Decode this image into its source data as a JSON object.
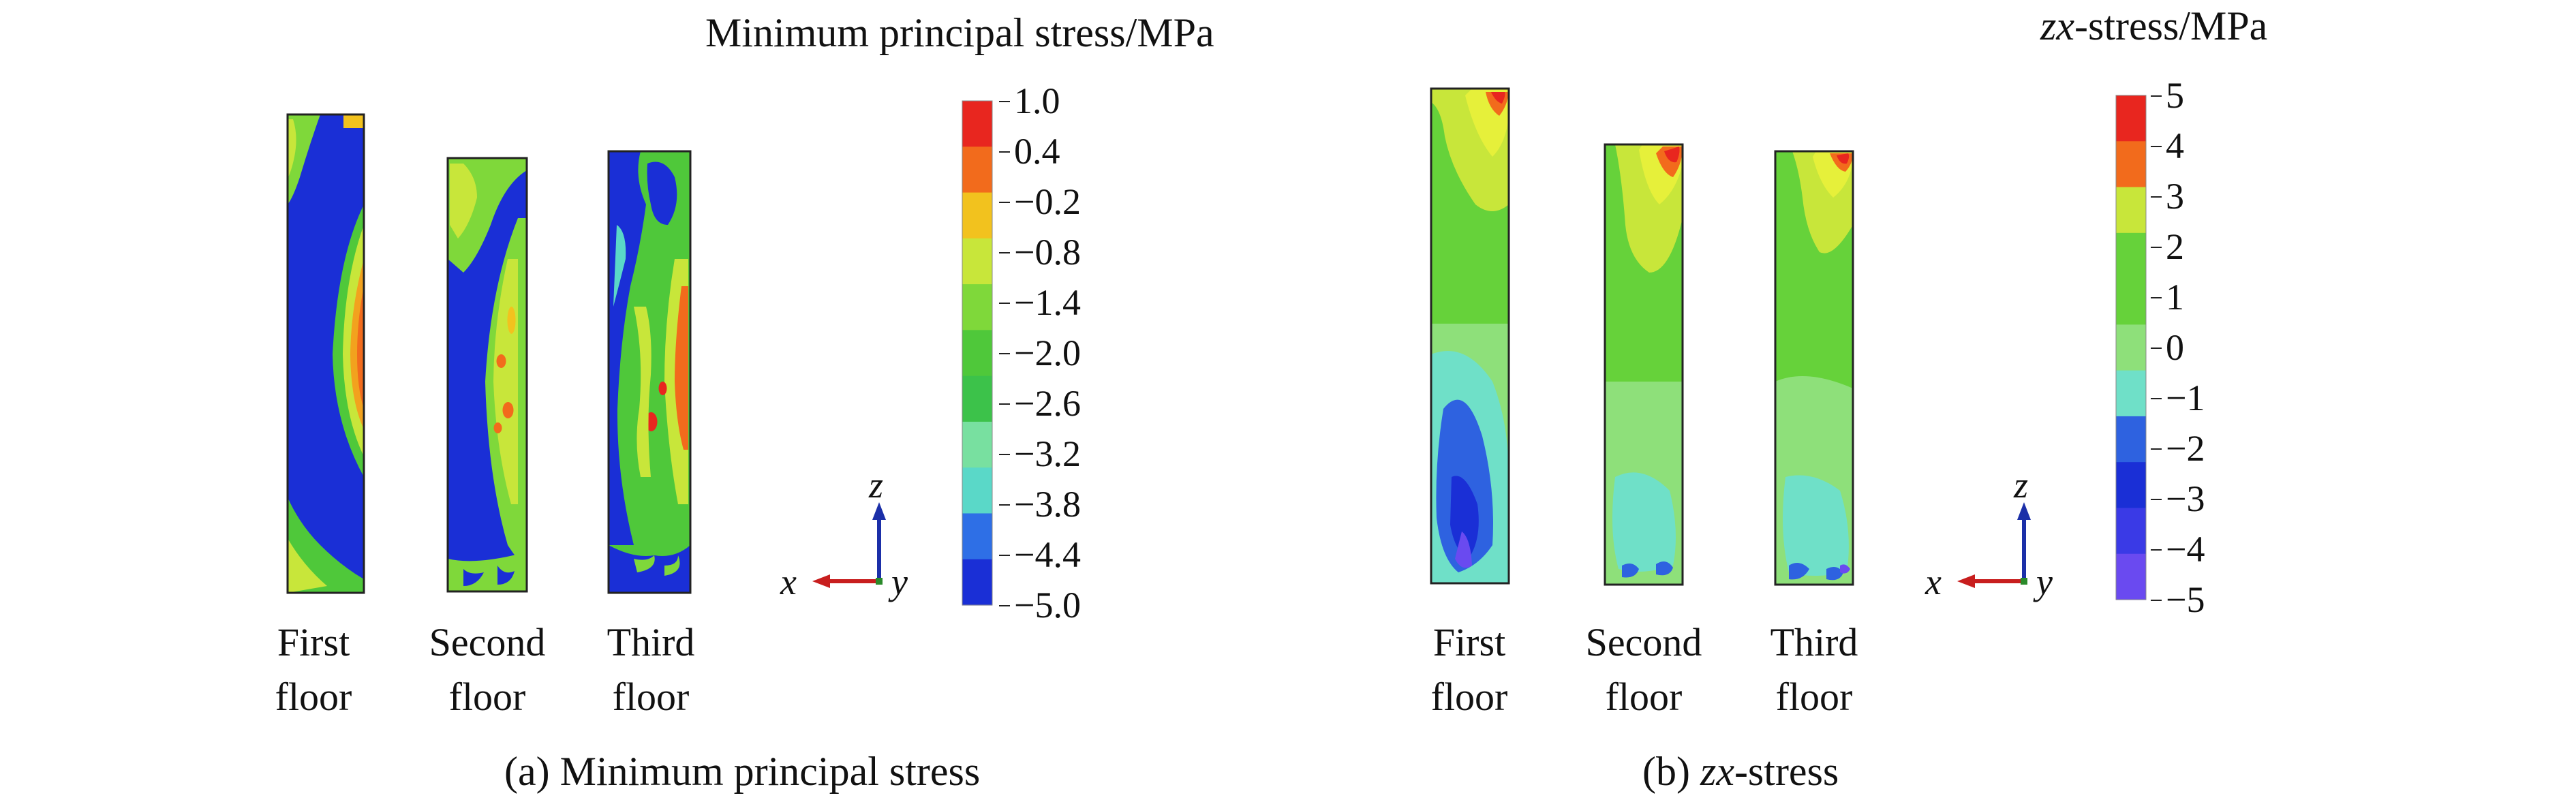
{
  "panel_a": {
    "colorbar_title": "Minimum principal stress/MPa",
    "colorbar_ticks": [
      "1.0",
      "0.4",
      "−0.2",
      "−0.8",
      "−1.4",
      "−2.0",
      "−2.6",
      "−3.2",
      "−3.8",
      "−4.4",
      "−5.0"
    ],
    "colorbar_colors": [
      "#e8261f",
      "#f26b1c",
      "#f2c21e",
      "#c8e63a",
      "#7fd83a",
      "#4fc83a",
      "#3cc24a",
      "#78e0a0",
      "#5ad8c8",
      "#2e6fe6",
      "#1a2fd6"
    ],
    "floors": [
      {
        "line1": "First",
        "line2": "floor"
      },
      {
        "line1": "Second",
        "line2": "floor"
      },
      {
        "line1": "Third",
        "line2": "floor"
      }
    ],
    "axes": {
      "z": "z",
      "x": "x",
      "y": "y"
    },
    "caption": "(a) Minimum principal stress"
  },
  "panel_b": {
    "colorbar_title_italic": "zx",
    "colorbar_title_rest": "-stress/MPa",
    "colorbar_ticks": [
      "5",
      "4",
      "3",
      "2",
      "1",
      "0",
      "−1",
      "−2",
      "−3",
      "−4",
      "−5"
    ],
    "colorbar_colors": [
      "#e8261f",
      "#f26b1c",
      "#c8e63a",
      "#66d23a",
      "#66d23a",
      "#8ee07a",
      "#6fe0c8",
      "#2e62e0",
      "#1a2fd6",
      "#3a3ae6",
      "#6a4af0"
    ],
    "floors": [
      {
        "line1": "First",
        "line2": "floor"
      },
      {
        "line1": "Second",
        "line2": "floor"
      },
      {
        "line1": "Third",
        "line2": "floor"
      }
    ],
    "axes": {
      "z": "z",
      "x": "x",
      "y": "y"
    },
    "caption_prefix": "(b) ",
    "caption_italic": "zx",
    "caption_rest": "-stress"
  }
}
